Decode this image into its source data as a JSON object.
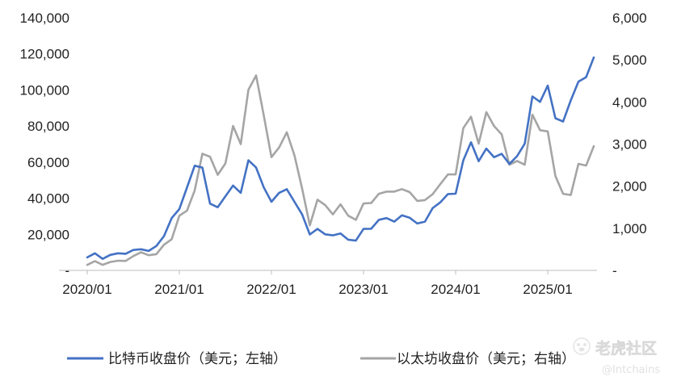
{
  "chart_data": {
    "type": "line",
    "x_ticks": [
      "2020/01",
      "2021/01",
      "2022/01",
      "2023/01",
      "2024/01",
      "2025/01"
    ],
    "x_range": [
      "2020-01",
      "2025-07"
    ],
    "y_left": {
      "range": [
        0,
        140000
      ],
      "ticks": [
        "-",
        "20,000",
        "40,000",
        "60,000",
        "80,000",
        "100,000",
        "120,000",
        "140,000"
      ]
    },
    "y_right": {
      "range": [
        0,
        6000
      ],
      "ticks": [
        "-",
        "1,000",
        "2,000",
        "3,000",
        "4,000",
        "5,000",
        "6,000"
      ]
    },
    "grid": false,
    "legend_position": "bottom",
    "series": [
      {
        "name": "比特币收盘价（美元；左轴）",
        "axis": "left",
        "color": "#4472C4",
        "points": [
          [
            "2020-01",
            7200
          ],
          [
            "2020-02",
            9500
          ],
          [
            "2020-03",
            6400
          ],
          [
            "2020-04",
            8600
          ],
          [
            "2020-05",
            9500
          ],
          [
            "2020-06",
            9200
          ],
          [
            "2020-07",
            11300
          ],
          [
            "2020-08",
            11700
          ],
          [
            "2020-09",
            10800
          ],
          [
            "2020-10",
            13500
          ],
          [
            "2020-11",
            19000
          ],
          [
            "2020-12",
            29000
          ],
          [
            "2021-01",
            34000
          ],
          [
            "2021-02",
            46000
          ],
          [
            "2021-03",
            58000
          ],
          [
            "2021-04",
            57000
          ],
          [
            "2021-05",
            37000
          ],
          [
            "2021-06",
            35000
          ],
          [
            "2021-07",
            41000
          ],
          [
            "2021-08",
            47000
          ],
          [
            "2021-09",
            43000
          ],
          [
            "2021-10",
            61000
          ],
          [
            "2021-11",
            57000
          ],
          [
            "2021-12",
            46000
          ],
          [
            "2022-01",
            38000
          ],
          [
            "2022-02",
            43000
          ],
          [
            "2022-03",
            45000
          ],
          [
            "2022-04",
            38000
          ],
          [
            "2022-05",
            31000
          ],
          [
            "2022-06",
            19900
          ],
          [
            "2022-07",
            23000
          ],
          [
            "2022-08",
            20000
          ],
          [
            "2022-09",
            19400
          ],
          [
            "2022-10",
            20500
          ],
          [
            "2022-11",
            17000
          ],
          [
            "2022-12",
            16500
          ],
          [
            "2023-01",
            23000
          ],
          [
            "2023-02",
            23100
          ],
          [
            "2023-03",
            28000
          ],
          [
            "2023-04",
            29000
          ],
          [
            "2023-05",
            27000
          ],
          [
            "2023-06",
            30500
          ],
          [
            "2023-07",
            29200
          ],
          [
            "2023-08",
            26000
          ],
          [
            "2023-09",
            27000
          ],
          [
            "2023-10",
            34500
          ],
          [
            "2023-11",
            37700
          ],
          [
            "2023-12",
            42300
          ],
          [
            "2024-01",
            42500
          ],
          [
            "2024-02",
            61000
          ],
          [
            "2024-03",
            71000
          ],
          [
            "2024-04",
            60500
          ],
          [
            "2024-05",
            67500
          ],
          [
            "2024-06",
            62700
          ],
          [
            "2024-07",
            64600
          ],
          [
            "2024-08",
            59000
          ],
          [
            "2024-09",
            63300
          ],
          [
            "2024-10",
            70200
          ],
          [
            "2024-11",
            96400
          ],
          [
            "2024-12",
            93400
          ],
          [
            "2025-01",
            102400
          ],
          [
            "2025-02",
            84300
          ],
          [
            "2025-03",
            82500
          ],
          [
            "2025-04",
            94200
          ],
          [
            "2025-05",
            104600
          ],
          [
            "2025-06",
            107100
          ],
          [
            "2025-07",
            118000
          ]
        ]
      },
      {
        "name": "以太坊收盘价（美元；右轴）",
        "axis": "right",
        "color": "#A5A5A5",
        "points": [
          [
            "2020-01",
            130
          ],
          [
            "2020-02",
            220
          ],
          [
            "2020-03",
            130
          ],
          [
            "2020-04",
            200
          ],
          [
            "2020-05",
            230
          ],
          [
            "2020-06",
            225
          ],
          [
            "2020-07",
            340
          ],
          [
            "2020-08",
            430
          ],
          [
            "2020-09",
            360
          ],
          [
            "2020-10",
            385
          ],
          [
            "2020-11",
            610
          ],
          [
            "2020-12",
            740
          ],
          [
            "2021-01",
            1300
          ],
          [
            "2021-02",
            1420
          ],
          [
            "2021-03",
            1900
          ],
          [
            "2021-04",
            2770
          ],
          [
            "2021-05",
            2700
          ],
          [
            "2021-06",
            2270
          ],
          [
            "2021-07",
            2540
          ],
          [
            "2021-08",
            3430
          ],
          [
            "2021-09",
            3000
          ],
          [
            "2021-10",
            4290
          ],
          [
            "2021-11",
            4630
          ],
          [
            "2021-12",
            3680
          ],
          [
            "2022-01",
            2690
          ],
          [
            "2022-02",
            2920
          ],
          [
            "2022-03",
            3280
          ],
          [
            "2022-04",
            2730
          ],
          [
            "2022-05",
            1940
          ],
          [
            "2022-06",
            1070
          ],
          [
            "2022-07",
            1680
          ],
          [
            "2022-08",
            1550
          ],
          [
            "2022-09",
            1330
          ],
          [
            "2022-10",
            1570
          ],
          [
            "2022-11",
            1300
          ],
          [
            "2022-12",
            1200
          ],
          [
            "2023-01",
            1590
          ],
          [
            "2023-02",
            1600
          ],
          [
            "2023-03",
            1820
          ],
          [
            "2023-04",
            1870
          ],
          [
            "2023-05",
            1870
          ],
          [
            "2023-06",
            1930
          ],
          [
            "2023-07",
            1860
          ],
          [
            "2023-08",
            1650
          ],
          [
            "2023-09",
            1670
          ],
          [
            "2023-10",
            1810
          ],
          [
            "2023-11",
            2050
          ],
          [
            "2023-12",
            2280
          ],
          [
            "2024-01",
            2280
          ],
          [
            "2024-02",
            3380
          ],
          [
            "2024-03",
            3650
          ],
          [
            "2024-04",
            3010
          ],
          [
            "2024-05",
            3760
          ],
          [
            "2024-06",
            3430
          ],
          [
            "2024-07",
            3230
          ],
          [
            "2024-08",
            2510
          ],
          [
            "2024-09",
            2600
          ],
          [
            "2024-10",
            2510
          ],
          [
            "2024-11",
            3700
          ],
          [
            "2024-12",
            3330
          ],
          [
            "2025-01",
            3300
          ],
          [
            "2025-02",
            2240
          ],
          [
            "2025-03",
            1820
          ],
          [
            "2025-04",
            1790
          ],
          [
            "2025-05",
            2530
          ],
          [
            "2025-06",
            2490
          ],
          [
            "2025-07",
            2950
          ]
        ]
      }
    ]
  },
  "watermark": {
    "name": "老虎社区",
    "handle": "@Intchains",
    "icon": "tiger-paw-icon"
  }
}
